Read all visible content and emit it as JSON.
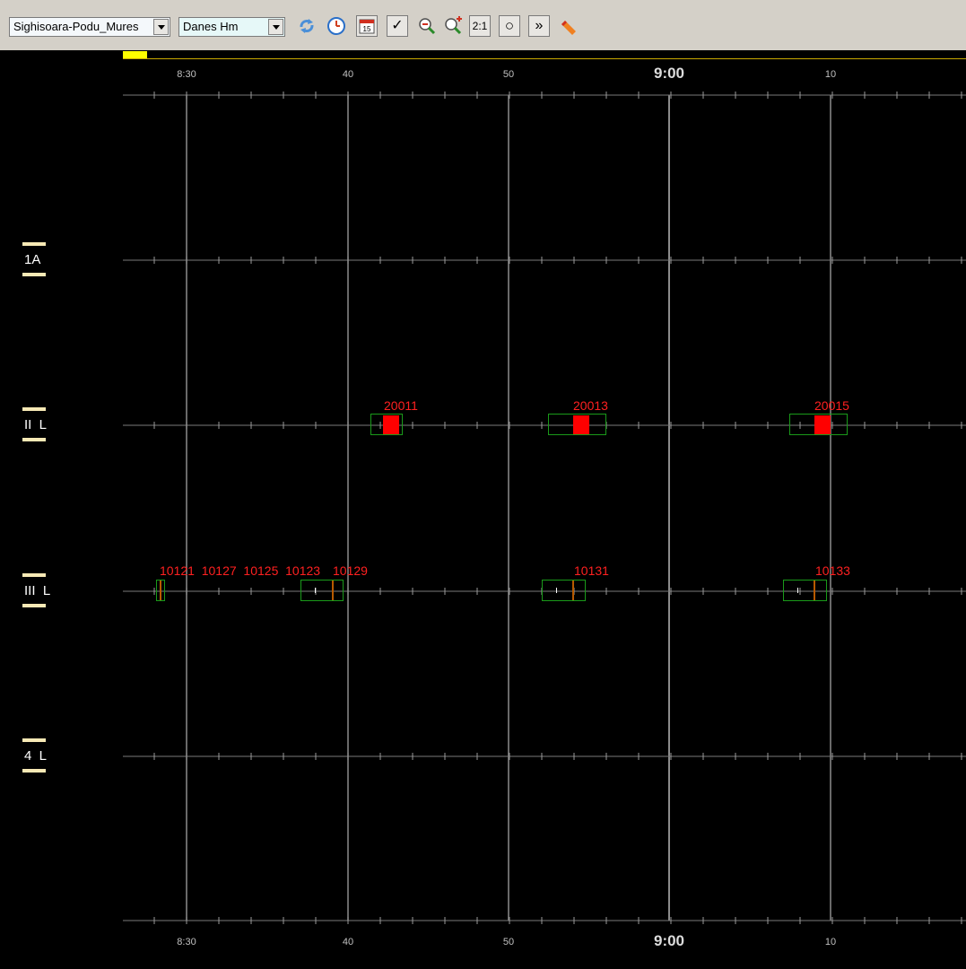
{
  "toolbar": {
    "section_select": "Sighisoara-Podu_Mures",
    "operator_select": "Danes Hm",
    "buttons": {
      "refresh": "refresh-icon",
      "clock": "clock-icon",
      "calendar": "calendar-icon",
      "calendar_day": "15",
      "check": "✓",
      "zoom_out": "zoom-out-icon",
      "zoom_in": "zoom-in-icon",
      "ratio": "2:1",
      "circle": "○",
      "forward": "»",
      "eraser": "eraser-icon"
    }
  },
  "timeline": {
    "labels": [
      "8:30",
      "40",
      "50",
      "9:00",
      "10"
    ],
    "major_label": "9:00"
  },
  "tracks": [
    {
      "name": "1A"
    },
    {
      "name": "II  L"
    },
    {
      "name": "III  L"
    },
    {
      "name": "4  L"
    }
  ],
  "trains": {
    "track_II": [
      "20011",
      "20013",
      "20015"
    ],
    "track_III_group": "10121  10127  10125  10123",
    "track_III": [
      "10129",
      "10131",
      "10133"
    ]
  },
  "colors": {
    "background": "#000000",
    "grid": "#808080",
    "train_label": "#ff2020",
    "train_box": "#1a9a1a",
    "train_occupied": "#ff0000",
    "scroll_thumb": "#ffff00"
  }
}
